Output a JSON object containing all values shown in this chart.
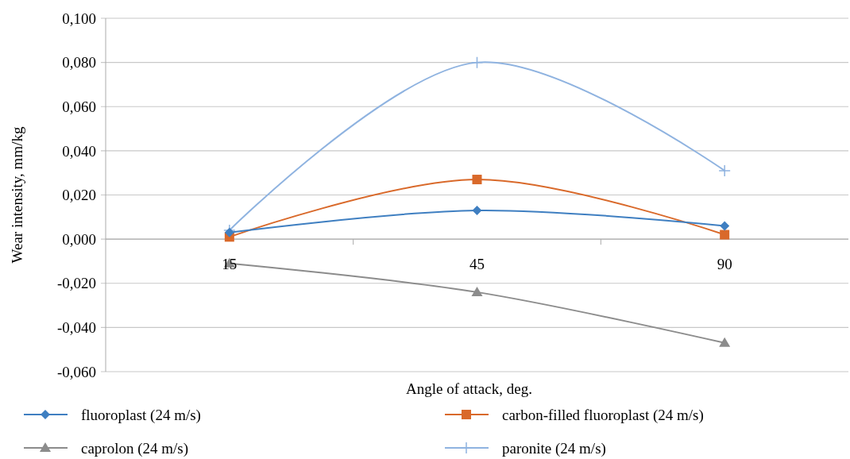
{
  "chart_data": {
    "type": "line",
    "xlabel": "Angle of attack, deg.",
    "ylabel": "Wear intensity, mm/kg",
    "categories": [
      "15",
      "45",
      "90"
    ],
    "ylim": [
      -0.06,
      0.1
    ],
    "yticks": [
      {
        "value": -0.06,
        "label": "-0,060"
      },
      {
        "value": -0.04,
        "label": "-0,040"
      },
      {
        "value": -0.02,
        "label": "-0,020"
      },
      {
        "value": 0,
        "label": "0,000"
      },
      {
        "value": 0.02,
        "label": "0,020"
      },
      {
        "value": 0.04,
        "label": "0,040"
      },
      {
        "value": 0.06,
        "label": "0,060"
      },
      {
        "value": 0.08,
        "label": "0,080"
      },
      {
        "value": 0.1,
        "label": "0,100"
      }
    ],
    "grid": "y",
    "legend": "bottom",
    "series": [
      {
        "name": "fluoroplast (24 m/s)",
        "color": "#3f7fc1",
        "marker": "diamond",
        "values": [
          0.003,
          0.013,
          0.006
        ]
      },
      {
        "name": "carbon-filled fluoroplast (24 m/s)",
        "color": "#d9692a",
        "marker": "square",
        "values": [
          0.001,
          0.027,
          0.002
        ]
      },
      {
        "name": "caprolon (24 m/s)",
        "color": "#8c8c8c",
        "marker": "triangle",
        "values": [
          -0.011,
          -0.024,
          -0.047
        ]
      },
      {
        "name": "paronite (24 m/s)",
        "color": "#8fb3e0",
        "marker": "cross",
        "values": [
          0.004,
          0.08,
          0.031
        ]
      }
    ]
  }
}
